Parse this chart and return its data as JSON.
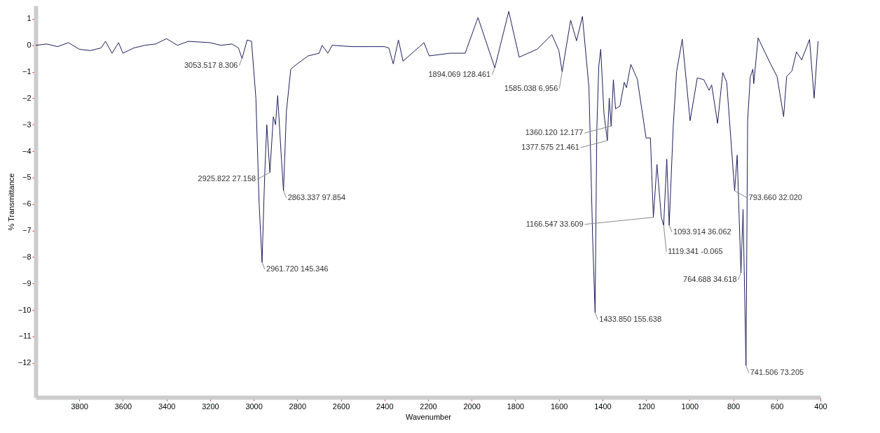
{
  "chart_data": {
    "type": "line",
    "xlabel": "Wavenumber",
    "ylabel": "% Transmittance",
    "xlim": [
      4000,
      400
    ],
    "ylim": [
      -13.3,
      1.5
    ],
    "xticks": [
      3800,
      3600,
      3400,
      3200,
      3000,
      2800,
      2600,
      2400,
      2200,
      2000,
      1800,
      1600,
      1400,
      1200,
      1000,
      800,
      600,
      400
    ],
    "yticks": [
      -12,
      -11,
      -10,
      -9,
      -8,
      -7,
      -6,
      -5,
      -4,
      -3,
      -2,
      -1,
      0,
      1
    ],
    "grid": false,
    "line_style": "solid",
    "marker": "none",
    "x": [
      4000,
      3950,
      3900,
      3850,
      3800,
      3750,
      3700,
      3680,
      3650,
      3620,
      3600,
      3550,
      3500,
      3450,
      3400,
      3350,
      3300,
      3200,
      3150,
      3100,
      3070,
      3053.517,
      3030,
      3010,
      2990,
      2975,
      2961.72,
      2950,
      2940,
      2925.822,
      2910,
      2900,
      2890,
      2875,
      2863.337,
      2850,
      2830,
      2800,
      2750,
      2700,
      2686,
      2660,
      2640,
      2550,
      2450,
      2400,
      2380,
      2360,
      2336,
      2315,
      2219,
      2195,
      2100,
      2030,
      1971,
      1894.069,
      1830,
      1782,
      1700,
      1632,
      1600,
      1585.038,
      1546,
      1519,
      1492,
      1462,
      1445,
      1433.85,
      1426,
      1417,
      1408,
      1393,
      1377.575,
      1369,
      1360.12,
      1350,
      1340,
      1320,
      1300,
      1290,
      1270,
      1240,
      1200,
      1180,
      1166.547,
      1150,
      1130,
      1119.341,
      1105,
      1093.914,
      1075,
      1060,
      1034,
      998,
      965,
      935,
      911,
      899,
      872,
      848,
      830,
      793.66,
      782,
      764.688,
      755,
      741.506,
      734,
      722,
      710,
      706,
      686,
      680,
      629,
      599,
      569,
      555,
      531,
      510,
      486,
      450,
      429,
      411
    ],
    "series": [
      {
        "color": "#1e1e5c",
        "values": [
          0.0,
          0.05,
          -0.05,
          0.1,
          -0.15,
          -0.2,
          -0.1,
          0.15,
          -0.3,
          0.1,
          -0.3,
          -0.1,
          0.0,
          0.05,
          0.25,
          0.0,
          0.15,
          0.1,
          0.0,
          0.05,
          -0.1,
          -0.5,
          0.2,
          0.15,
          -2.0,
          -6.0,
          -8.2,
          -5.0,
          -3.0,
          -4.8,
          -2.7,
          -3.0,
          -1.9,
          -4.0,
          -5.5,
          -2.5,
          -0.9,
          -0.7,
          -0.4,
          -0.3,
          0.0,
          -0.3,
          0.0,
          -0.05,
          -0.05,
          -0.05,
          -0.1,
          -0.7,
          0.2,
          -0.6,
          0.1,
          -0.4,
          -0.3,
          -0.3,
          1.05,
          -0.85,
          1.28,
          -0.45,
          -0.15,
          0.4,
          -0.2,
          -1.0,
          0.95,
          0.17,
          1.09,
          -1.6,
          -7.3,
          -10.1,
          -3.2,
          -0.8,
          -0.15,
          -2.6,
          -3.6,
          -2.0,
          -3.05,
          -1.3,
          -2.4,
          -2.3,
          -1.4,
          -1.6,
          -0.72,
          -1.28,
          -3.5,
          -3.5,
          -6.5,
          -4.5,
          -6.5,
          -6.8,
          -4.3,
          -6.8,
          -3.0,
          -1.0,
          0.23,
          -2.85,
          -1.23,
          -1.3,
          -1.7,
          -1.5,
          -2.95,
          -1.03,
          -1.4,
          -5.5,
          -4.15,
          -8.6,
          -6.2,
          -12.1,
          -2.85,
          -1.2,
          -0.9,
          -1.45,
          0.28,
          0.17,
          -0.7,
          -1.18,
          -2.7,
          -1.18,
          -0.97,
          -0.25,
          -0.55,
          0.22,
          -2.0,
          0.15
        ]
      }
    ],
    "annotations": [
      {
        "text": "3053.517  8.306",
        "x": 3053.517,
        "y": -0.5
      },
      {
        "text": "2961.720  145.346",
        "x": 2961.72,
        "y": -8.2
      },
      {
        "text": "2925.822  27.158",
        "x": 2925.822,
        "y": -4.8
      },
      {
        "text": "2863.337  97.854",
        "x": 2863.337,
        "y": -5.5
      },
      {
        "text": "1894.069  128.461",
        "x": 1894.069,
        "y": -0.85
      },
      {
        "text": "1585.038  6.956",
        "x": 1585.038,
        "y": -1.0
      },
      {
        "text": "1433.850  155.638",
        "x": 1433.85,
        "y": -10.1
      },
      {
        "text": "1377.575  21.461",
        "x": 1377.575,
        "y": -3.6
      },
      {
        "text": "1360.120  12.177",
        "x": 1360.12,
        "y": -3.05
      },
      {
        "text": "1166.547  33.609",
        "x": 1166.547,
        "y": -6.5
      },
      {
        "text": "1119.341  -0.065",
        "x": 1119.341,
        "y": -6.8
      },
      {
        "text": "1093.914  36.062",
        "x": 1093.914,
        "y": -6.8
      },
      {
        "text": "793.660  32.020",
        "x": 793.66,
        "y": -5.5
      },
      {
        "text": "764.688  34.618",
        "x": 764.688,
        "y": -8.6
      },
      {
        "text": "741.506  73.205",
        "x": 741.506,
        "y": -12.1
      }
    ]
  }
}
